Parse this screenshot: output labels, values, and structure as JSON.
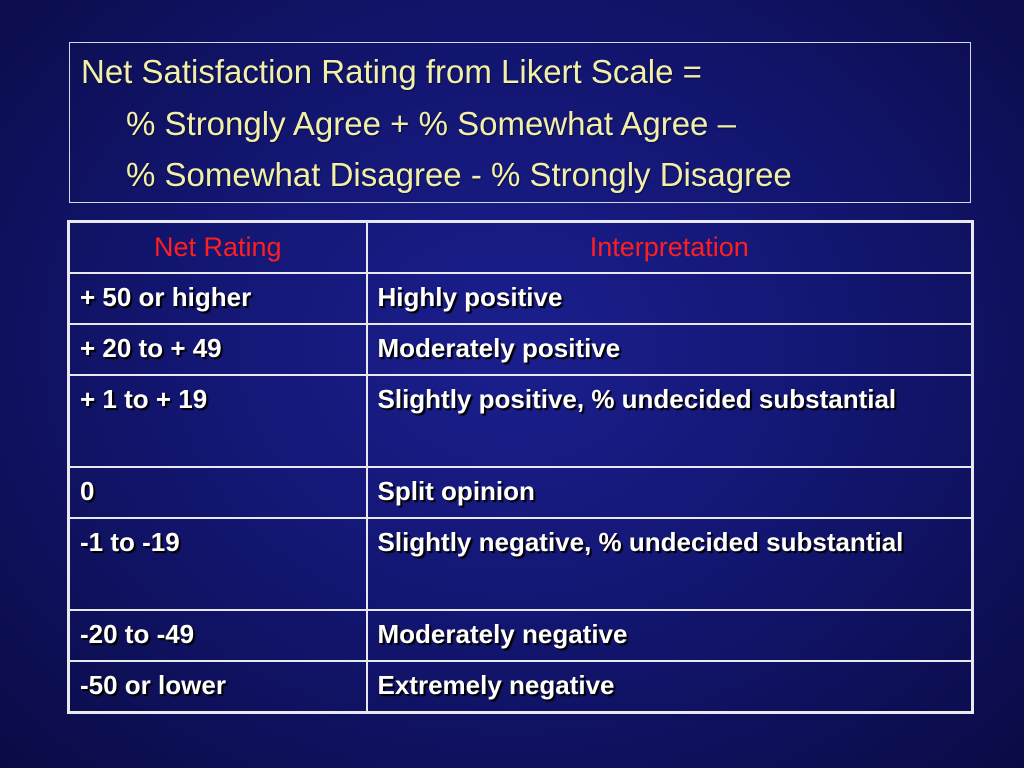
{
  "formula": {
    "line1": "Net Satisfaction Rating from Likert Scale =",
    "line2": "% Strongly Agree + % Somewhat Agree –",
    "line3": "% Somewhat Disagree - % Strongly Disagree"
  },
  "table": {
    "headers": [
      "Net Rating",
      "Interpretation"
    ],
    "rows": [
      {
        "rating": "+ 50 or higher",
        "interpretation": "Highly positive"
      },
      {
        "rating": "+ 20 to + 49",
        "interpretation": "Moderately positive"
      },
      {
        "rating": "+ 1 to + 19",
        "interpretation": "Slightly positive, % undecided substantial"
      },
      {
        "rating": "0",
        "interpretation": "Split opinion"
      },
      {
        "rating": "-1 to -19",
        "interpretation": "Slightly negative, % undecided substantial"
      },
      {
        "rating": "-20 to -49",
        "interpretation": "Moderately negative"
      },
      {
        "rating": "-50 or lower",
        "interpretation": "Extremely negative"
      }
    ]
  },
  "colors": {
    "background": "#131672",
    "formula_text": "#f2f0a8",
    "header_text": "#ff1f1f",
    "body_text": "#ffffff",
    "border": "#e8e8ef"
  }
}
